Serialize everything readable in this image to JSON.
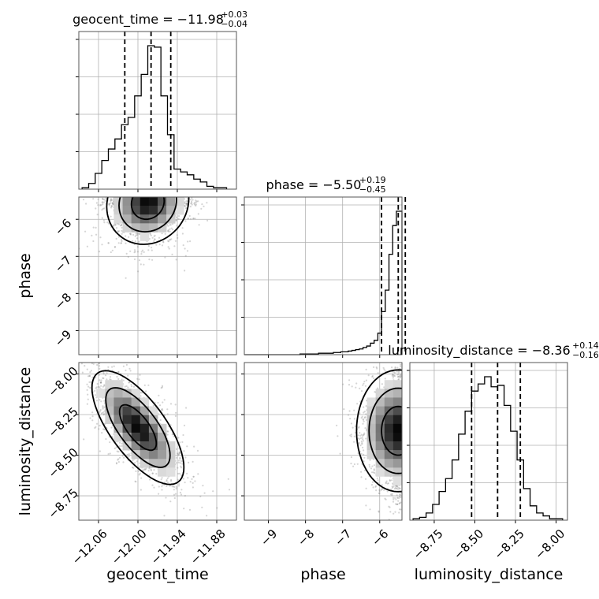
{
  "chart_data": {
    "type": "corner",
    "parameters": [
      "geocent_time",
      "phase",
      "luminosity_distance"
    ],
    "ranges": {
      "geocent_time": [
        -12.09,
        -11.85
      ],
      "phase": [
        -9.65,
        -5.4
      ],
      "luminosity_distance": [
        -8.9,
        -7.93
      ]
    },
    "ticks": {
      "geocent_time": [
        -12.06,
        -12.0,
        -11.94,
        -11.88
      ],
      "phase": [
        -9,
        -8,
        -7,
        -6
      ],
      "luminosity_distance": [
        -8.75,
        -8.5,
        -8.25,
        -8.0
      ]
    },
    "tick_labels": {
      "geocent_time": [
        "−12.06",
        "−12.00",
        "−11.94",
        "−11.88"
      ],
      "phase": [
        "−9",
        "−8",
        "−7",
        "−6"
      ],
      "luminosity_distance": [
        "−8.75",
        "−8.50",
        "−8.25",
        "−8.00"
      ]
    },
    "axis_labels": {
      "geocent_time": "geocent_time",
      "phase": "phase",
      "luminosity_distance": "luminosity_distance"
    },
    "titles": [
      {
        "param": "geocent_time",
        "text": "geocent_time = −11.98",
        "plus": "+0.03",
        "minus": "−0.04"
      },
      {
        "param": "phase",
        "text": "phase = −5.50",
        "plus": "+0.19",
        "minus": "−0.45"
      },
      {
        "param": "luminosity_distance",
        "text": "luminosity_distance = −8.36",
        "plus": "+0.14",
        "minus": "−0.16"
      }
    ],
    "quantiles": {
      "geocent_time": [
        -12.02,
        -11.98,
        -11.95
      ],
      "phase": [
        -5.95,
        -5.5,
        -5.31
      ],
      "luminosity_distance": [
        -8.52,
        -8.36,
        -8.22
      ]
    },
    "histograms": {
      "geocent_time": {
        "edges": [
          -12.085,
          -12.075,
          -12.065,
          -12.055,
          -12.045,
          -12.035,
          -12.025,
          -12.015,
          -12.005,
          -11.995,
          -11.985,
          -11.975,
          -11.965,
          -11.955,
          -11.945,
          -11.935,
          -11.925,
          -11.915,
          -11.905,
          -11.895,
          -11.885,
          -11.875,
          -11.865
        ],
        "counts": [
          0.01,
          0.04,
          0.11,
          0.2,
          0.28,
          0.35,
          0.45,
          0.5,
          0.65,
          0.8,
          1.0,
          0.99,
          0.65,
          0.38,
          0.14,
          0.12,
          0.1,
          0.07,
          0.05,
          0.02,
          0.01,
          0.01
        ]
      },
      "phase": {
        "edges": [
          -9.65,
          -9.55,
          -9.45,
          -9.35,
          -9.25,
          -9.15,
          -9.05,
          -8.95,
          -8.85,
          -8.75,
          -8.65,
          -8.55,
          -8.45,
          -8.35,
          -8.25,
          -8.15,
          -8.05,
          -7.95,
          -7.85,
          -7.75,
          -7.65,
          -7.55,
          -7.45,
          -7.35,
          -7.25,
          -7.15,
          -7.05,
          -6.95,
          -6.85,
          -6.75,
          -6.65,
          -6.55,
          -6.45,
          -6.35,
          -6.25,
          -6.15,
          -6.05,
          -5.95,
          -5.85,
          -5.75,
          -5.65,
          -5.55,
          -5.45,
          -5.4
        ],
        "counts": [
          0,
          0,
          0,
          0,
          0,
          0,
          0,
          0,
          0,
          0,
          0,
          0,
          0,
          0,
          0,
          0.005,
          0.005,
          0.005,
          0.005,
          0.005,
          0.01,
          0.01,
          0.01,
          0.01,
          0.015,
          0.015,
          0.02,
          0.02,
          0.025,
          0.03,
          0.035,
          0.04,
          0.05,
          0.06,
          0.08,
          0.1,
          0.15,
          0.3,
          0.45,
          0.7,
          0.9,
          1.0,
          1.0
        ]
      },
      "luminosity_distance": {
        "edges": [
          -8.88,
          -8.84,
          -8.8,
          -8.76,
          -8.72,
          -8.68,
          -8.64,
          -8.6,
          -8.56,
          -8.52,
          -8.48,
          -8.44,
          -8.4,
          -8.36,
          -8.32,
          -8.28,
          -8.24,
          -8.2,
          -8.16,
          -8.12,
          -8.08,
          -8.04,
          -8.0,
          -7.96
        ],
        "counts": [
          0.01,
          0.02,
          0.05,
          0.11,
          0.2,
          0.29,
          0.42,
          0.6,
          0.76,
          0.9,
          0.95,
          1.0,
          0.93,
          0.94,
          0.8,
          0.62,
          0.42,
          0.22,
          0.1,
          0.05,
          0.03,
          0.01,
          0.01
        ]
      }
    },
    "density_2d": {
      "phase_vs_geocent_time": {
        "x_mean": -11.985,
        "y_mean": -5.55,
        "x_sd": 0.025,
        "y_sd": 0.45,
        "correlation": 0.1
      },
      "luminosity_distance_vs_geocent_time": {
        "x_mean": -12.0,
        "y_mean": -8.33,
        "x_sd": 0.028,
        "y_sd": 0.14,
        "correlation": -0.7
      },
      "luminosity_distance_vs_phase": {
        "x_mean": -5.5,
        "y_mean": -8.35,
        "x_sd": 0.45,
        "y_sd": 0.15,
        "correlation": 0.0
      }
    },
    "grid": true
  }
}
